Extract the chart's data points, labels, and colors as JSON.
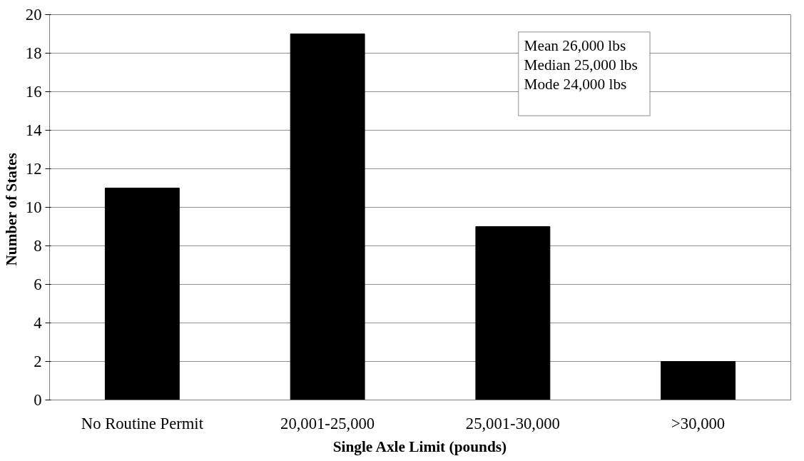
{
  "chart_data": {
    "type": "bar",
    "xlabel": "Single Axle Limit (pounds)",
    "ylabel": "Number of  States",
    "categories": [
      "No Routine Permit",
      "20,001-25,000",
      "25,001-30,000",
      ">30,000"
    ],
    "values": [
      11,
      19,
      9,
      2
    ],
    "color": "#000000",
    "ylim": [
      0,
      20
    ],
    "yticks": [
      0,
      2,
      4,
      6,
      8,
      10,
      12,
      14,
      16,
      18,
      20
    ],
    "grid": "y",
    "annotations": [
      "Mean 26,000 lbs",
      "Median 25,000 lbs",
      "Mode 24,000 lbs"
    ]
  }
}
